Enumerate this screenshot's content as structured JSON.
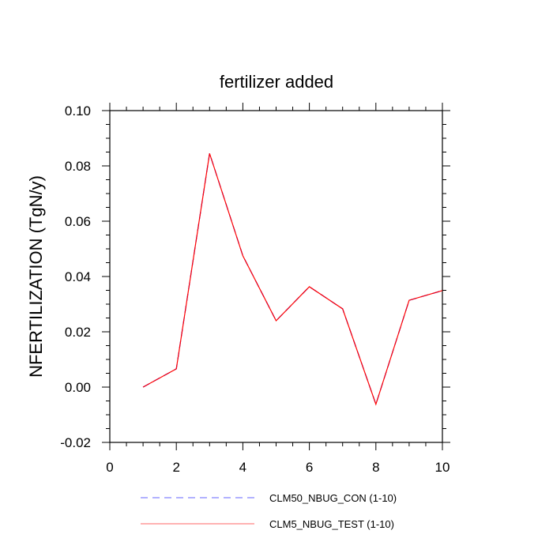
{
  "chart_data": {
    "type": "line",
    "title": "fertilizer added",
    "xlabel": "",
    "ylabel": "NFERTILIZATION  (TgN/y)",
    "xlim": [
      0,
      10
    ],
    "ylim": [
      -0.02,
      0.1
    ],
    "xticks": [
      0,
      2,
      4,
      6,
      8,
      10
    ],
    "xtick_labels": [
      "0",
      "2",
      "4",
      "6",
      "8",
      "10"
    ],
    "yticks": [
      -0.02,
      0.0,
      0.02,
      0.04,
      0.06,
      0.08,
      0.1
    ],
    "ytick_labels": [
      "-0.02",
      "0.00",
      "0.02",
      "0.04",
      "0.06",
      "0.08",
      "0.10"
    ],
    "grid": false,
    "legend_position": "bottom",
    "x": [
      1,
      2,
      3,
      4,
      5,
      6,
      7,
      8,
      9,
      10
    ],
    "series": [
      {
        "name": "CLM50_NBUG_CON (1-10)",
        "color": "#0000ff",
        "style": "dashed",
        "values": [
          0.0,
          0.0066,
          0.0845,
          0.0475,
          0.024,
          0.0363,
          0.0283,
          -0.0062,
          0.0314,
          0.0349
        ]
      },
      {
        "name": "CLM5_NBUG_TEST (1-10)",
        "color": "#ff0000",
        "style": "solid",
        "values": [
          0.0,
          0.0066,
          0.0845,
          0.0475,
          0.024,
          0.0363,
          0.0283,
          -0.0062,
          0.0314,
          0.0349
        ]
      }
    ]
  }
}
